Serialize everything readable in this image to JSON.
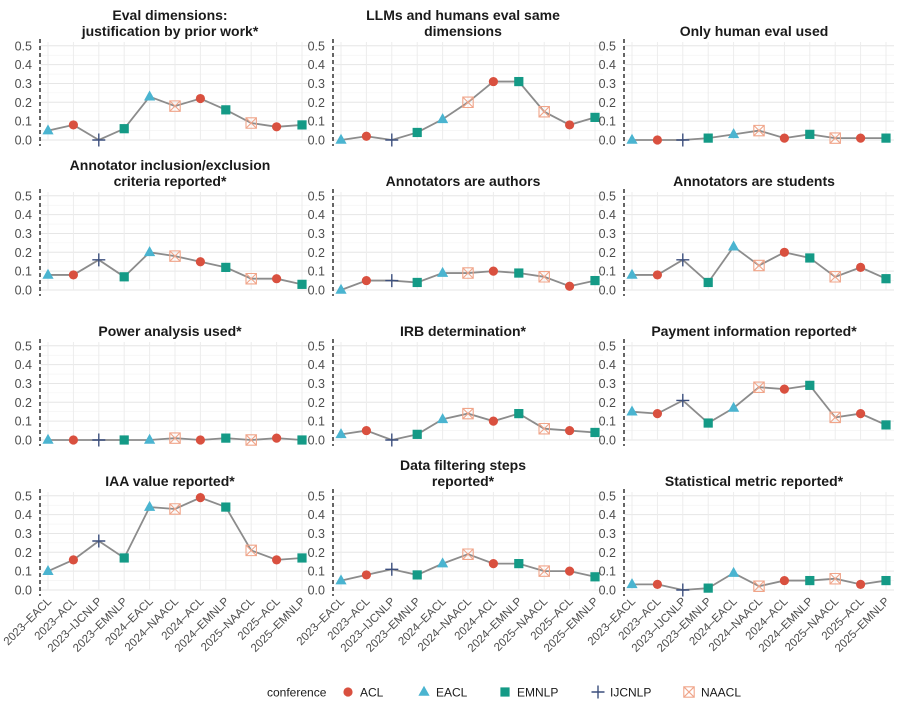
{
  "chart_data": {
    "type": "line",
    "categories": [
      "2023–EACL",
      "2023–ACL",
      "2023–IJCNLP",
      "2023–EMNLP",
      "2024–EACL",
      "2024–NAACL",
      "2024–ACL",
      "2024–EMNLP",
      "2025–NAACL",
      "2025–ACL",
      "2025–EMNLP"
    ],
    "point_conference": [
      "EACL",
      "ACL",
      "IJCNLP",
      "EMNLP",
      "EACL",
      "NAACL",
      "ACL",
      "EMNLP",
      "NAACL",
      "ACL",
      "EMNLP"
    ],
    "ylim": [
      0,
      0.52
    ],
    "yticks": [
      "0.0",
      "0.1",
      "0.2",
      "0.3",
      "0.4",
      "0.5"
    ],
    "grid": true,
    "line_color": "#8c8c8c",
    "vline_after_index": 0,
    "panels": [
      {
        "title_lines": [
          "Eval dimensions:",
          "justification by prior work*"
        ],
        "values": [
          0.05,
          0.08,
          0.0,
          0.06,
          0.23,
          0.18,
          0.22,
          0.16,
          0.09,
          0.07,
          0.08
        ]
      },
      {
        "title_lines": [
          "LLMs and humans eval same",
          "dimensions"
        ],
        "values": [
          0.0,
          0.02,
          0.0,
          0.04,
          0.11,
          0.2,
          0.31,
          0.31,
          0.15,
          0.08,
          0.12
        ]
      },
      {
        "title_lines": [
          "Only human eval used"
        ],
        "values": [
          0.0,
          0.0,
          0.0,
          0.01,
          0.03,
          0.05,
          0.01,
          0.03,
          0.01,
          0.01,
          0.01
        ]
      },
      {
        "title_lines": [
          "Annotator inclusion/exclusion",
          "criteria reported*"
        ],
        "values": [
          0.08,
          0.08,
          0.16,
          0.07,
          0.2,
          0.18,
          0.15,
          0.12,
          0.06,
          0.06,
          0.03
        ]
      },
      {
        "title_lines": [
          "Annotators are authors"
        ],
        "values": [
          0.0,
          0.05,
          0.05,
          0.04,
          0.09,
          0.09,
          0.1,
          0.09,
          0.07,
          0.02,
          0.05
        ]
      },
      {
        "title_lines": [
          "Annotators are students"
        ],
        "values": [
          0.08,
          0.08,
          0.16,
          0.04,
          0.23,
          0.13,
          0.2,
          0.17,
          0.07,
          0.12,
          0.06
        ]
      },
      {
        "title_lines": [
          "Power analysis used*"
        ],
        "values": [
          0.0,
          0.0,
          0.0,
          0.0,
          0.0,
          0.01,
          0.0,
          0.01,
          0.0,
          0.01,
          0.0
        ]
      },
      {
        "title_lines": [
          "IRB determination*"
        ],
        "values": [
          0.03,
          0.05,
          0.0,
          0.03,
          0.11,
          0.14,
          0.1,
          0.14,
          0.06,
          0.05,
          0.04
        ]
      },
      {
        "title_lines": [
          "Payment information reported*"
        ],
        "values": [
          0.15,
          0.14,
          0.21,
          0.09,
          0.17,
          0.28,
          0.27,
          0.29,
          0.12,
          0.14,
          0.08
        ]
      },
      {
        "title_lines": [
          "IAA value reported*"
        ],
        "values": [
          0.1,
          0.16,
          0.26,
          0.17,
          0.44,
          0.43,
          0.49,
          0.44,
          0.21,
          0.16,
          0.17
        ]
      },
      {
        "title_lines": [
          "Data filtering steps",
          "reported*"
        ],
        "values": [
          0.05,
          0.08,
          0.11,
          0.08,
          0.14,
          0.19,
          0.14,
          0.14,
          0.1,
          0.1,
          0.07
        ]
      },
      {
        "title_lines": [
          "Statistical metric reported*"
        ],
        "values": [
          0.03,
          0.03,
          0.0,
          0.01,
          0.09,
          0.02,
          0.05,
          0.05,
          0.06,
          0.03,
          0.05
        ]
      }
    ],
    "legend": {
      "title": "conference",
      "position": "bottom",
      "items": [
        {
          "name": "ACL",
          "shape": "circle",
          "color": "#d9503f"
        },
        {
          "name": "EACL",
          "shape": "triangle",
          "color": "#4ab4d0"
        },
        {
          "name": "EMNLP",
          "shape": "square",
          "color": "#149a86"
        },
        {
          "name": "IJCNLP",
          "shape": "plus",
          "color": "#3c4f7d"
        },
        {
          "name": "NAACL",
          "shape": "square-x",
          "color": "#f0a58a"
        }
      ]
    }
  }
}
